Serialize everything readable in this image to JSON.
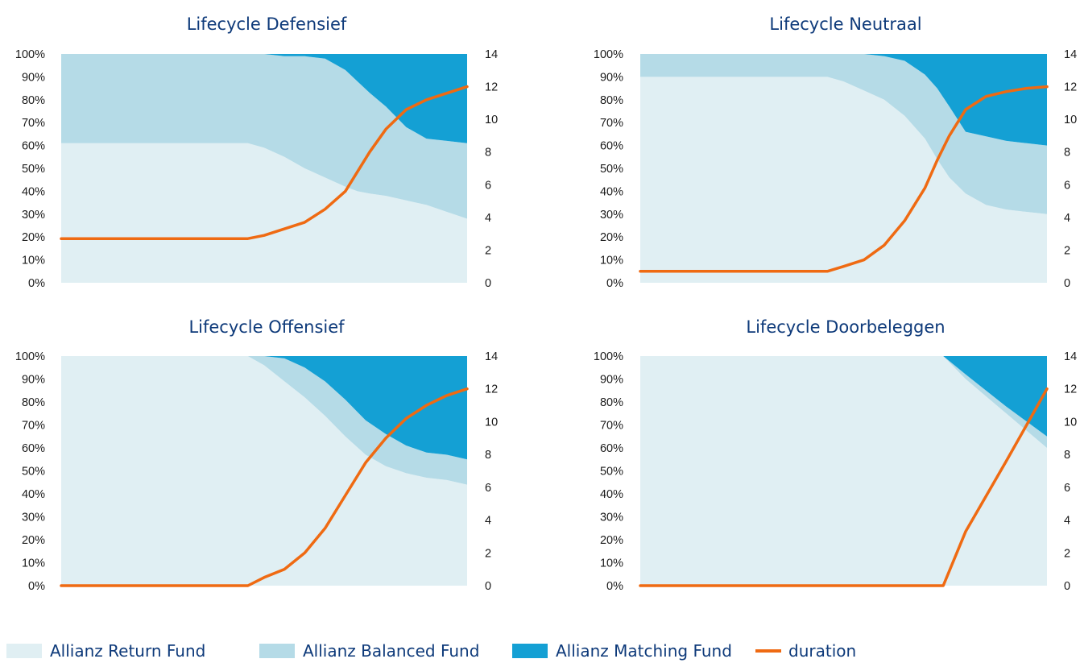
{
  "colors": {
    "return": "#e0eff3",
    "balanced": "#b5dbe7",
    "matching": "#14a0d4",
    "duration": "#ef6a12",
    "title": "#0e3a7a"
  },
  "legend": {
    "items": [
      {
        "label": "Allianz Return Fund",
        "kind": "area",
        "color": "#e0eff3"
      },
      {
        "label": "Allianz Balanced Fund",
        "kind": "area",
        "color": "#b5dbe7"
      },
      {
        "label": "Allianz Matching Fund",
        "kind": "area",
        "color": "#14a0d4"
      },
      {
        "label": "duration",
        "kind": "line",
        "color": "#ef6a12"
      }
    ]
  },
  "chart_data": [
    {
      "type": "area",
      "title": "Lifecycle Defensief",
      "y_left_ticks": [
        "0%",
        "10%",
        "20%",
        "30%",
        "40%",
        "50%",
        "60%",
        "70%",
        "80%",
        "90%",
        "100%"
      ],
      "y_right_ticks": [
        "0",
        "2",
        "4",
        "6",
        "8",
        "10",
        "12",
        "14"
      ],
      "ylim_left": [
        0,
        100
      ],
      "ylim_right": [
        0,
        14
      ],
      "x": [
        0,
        0.46,
        0.5,
        0.55,
        0.6,
        0.65,
        0.7,
        0.73,
        0.76,
        0.8,
        0.85,
        0.9,
        0.95,
        1.0
      ],
      "series": [
        {
          "name": "Allianz Return Fund",
          "values": [
            61,
            61,
            59,
            55,
            50,
            46,
            42,
            40,
            39,
            38,
            36,
            34,
            31,
            28
          ]
        },
        {
          "name": "Allianz Balanced Fund",
          "values": [
            39,
            39,
            41,
            44,
            49,
            52,
            51,
            48,
            44,
            39,
            32,
            29,
            31,
            33
          ]
        },
        {
          "name": "Allianz Matching Fund",
          "values": [
            0,
            0,
            0,
            1,
            1,
            2,
            7,
            12,
            17,
            23,
            32,
            37,
            38,
            39
          ]
        }
      ],
      "duration": [
        2.7,
        2.7,
        2.9,
        3.3,
        3.7,
        4.5,
        5.6,
        6.8,
        8.0,
        9.4,
        10.6,
        11.2,
        11.6,
        12.0
      ]
    },
    {
      "type": "area",
      "title": "Lifecycle Neutraal",
      "y_left_ticks": [
        "0%",
        "10%",
        "20%",
        "30%",
        "40%",
        "50%",
        "60%",
        "70%",
        "80%",
        "90%",
        "100%"
      ],
      "y_right_ticks": [
        "0",
        "2",
        "4",
        "6",
        "8",
        "10",
        "12",
        "14"
      ],
      "ylim_left": [
        0,
        100
      ],
      "ylim_right": [
        0,
        14
      ],
      "x": [
        0,
        0.46,
        0.5,
        0.55,
        0.6,
        0.65,
        0.7,
        0.73,
        0.76,
        0.8,
        0.85,
        0.9,
        0.95,
        1.0
      ],
      "series": [
        {
          "name": "Allianz Return Fund",
          "values": [
            90,
            90,
            88,
            84,
            80,
            73,
            63,
            54,
            46,
            39,
            34,
            32,
            31,
            30
          ]
        },
        {
          "name": "Allianz Balanced Fund",
          "values": [
            10,
            10,
            12,
            16,
            19,
            24,
            28,
            31,
            31,
            27,
            30,
            30,
            30,
            30
          ]
        },
        {
          "name": "Allianz Matching Fund",
          "values": [
            0,
            0,
            0,
            0,
            1,
            3,
            9,
            15,
            23,
            34,
            36,
            38,
            39,
            40
          ]
        }
      ],
      "duration": [
        0.7,
        0.7,
        1.0,
        1.4,
        2.3,
        3.8,
        5.8,
        7.5,
        9.0,
        10.6,
        11.4,
        11.7,
        11.9,
        12.0
      ]
    },
    {
      "type": "area",
      "title": "Lifecycle Offensief",
      "y_left_ticks": [
        "0%",
        "10%",
        "20%",
        "30%",
        "40%",
        "50%",
        "60%",
        "70%",
        "80%",
        "90%",
        "100%"
      ],
      "y_right_ticks": [
        "0",
        "2",
        "4",
        "6",
        "8",
        "10",
        "12",
        "14"
      ],
      "ylim_left": [
        0,
        100
      ],
      "ylim_right": [
        0,
        14
      ],
      "x": [
        0,
        0.46,
        0.5,
        0.55,
        0.6,
        0.65,
        0.7,
        0.75,
        0.8,
        0.85,
        0.9,
        0.95,
        1.0
      ],
      "series": [
        {
          "name": "Allianz Return Fund",
          "values": [
            100,
            100,
            96,
            89,
            82,
            74,
            65,
            57,
            52,
            49,
            47,
            46,
            44
          ]
        },
        {
          "name": "Allianz Balanced Fund",
          "values": [
            0,
            0,
            4,
            10,
            13,
            15,
            16,
            15,
            14,
            12,
            11,
            11,
            11
          ]
        },
        {
          "name": "Allianz Matching Fund",
          "values": [
            0,
            0,
            0,
            1,
            5,
            11,
            19,
            28,
            34,
            39,
            42,
            43,
            45
          ]
        }
      ],
      "duration": [
        0,
        0,
        0.5,
        1.0,
        2.0,
        3.5,
        5.5,
        7.5,
        9.0,
        10.2,
        11.0,
        11.6,
        12.0
      ]
    },
    {
      "type": "area",
      "title": "Lifecycle Doorbeleggen",
      "y_left_ticks": [
        "0%",
        "10%",
        "20%",
        "30%",
        "40%",
        "50%",
        "60%",
        "70%",
        "80%",
        "90%",
        "100%"
      ],
      "y_right_ticks": [
        "0",
        "2",
        "4",
        "6",
        "8",
        "10",
        "12",
        "14"
      ],
      "ylim_left": [
        0,
        100
      ],
      "ylim_right": [
        0,
        14
      ],
      "x": [
        0,
        0.745,
        0.8,
        0.9,
        1.0
      ],
      "series": [
        {
          "name": "Allianz Return Fund",
          "values": [
            100,
            100,
            90,
            75,
            60
          ]
        },
        {
          "name": "Allianz Balanced Fund",
          "values": [
            0,
            0,
            2,
            3,
            5
          ]
        },
        {
          "name": "Allianz Matching Fund",
          "values": [
            0,
            0,
            8,
            22,
            35
          ]
        }
      ],
      "duration": [
        0,
        0,
        3.3,
        7.6,
        12.0
      ]
    }
  ]
}
